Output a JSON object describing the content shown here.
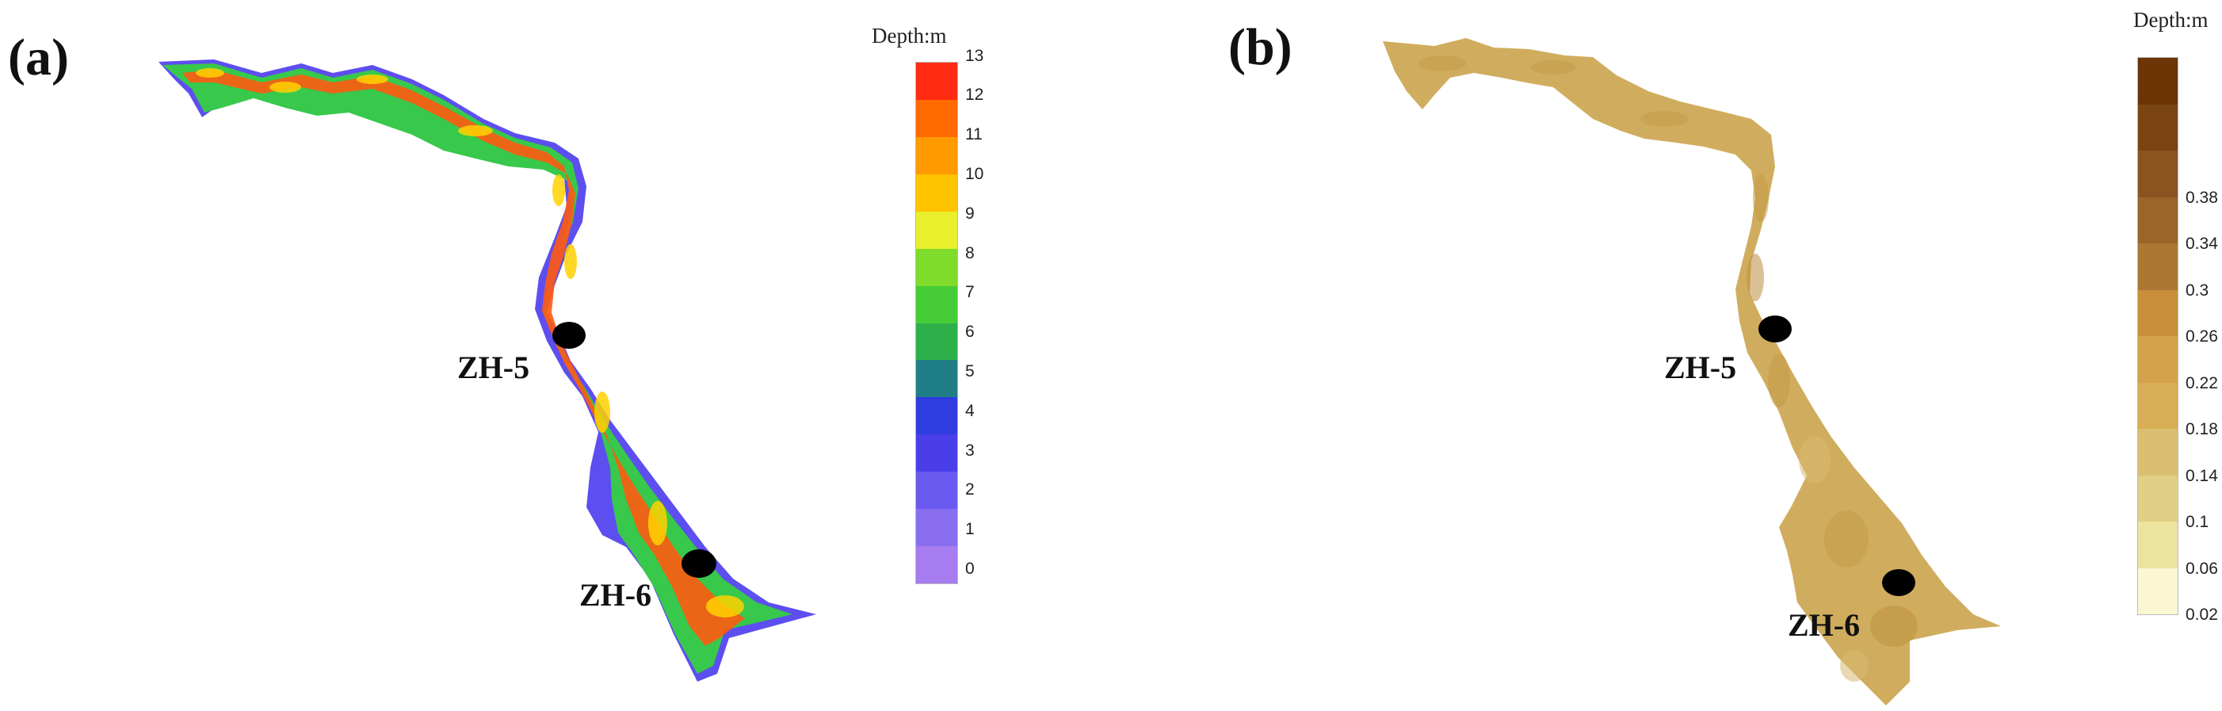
{
  "panels": [
    {
      "id": "a",
      "label": "(a)",
      "legend": {
        "title": "Depth:m",
        "ticks": [
          "0",
          "1",
          "2",
          "3",
          "4",
          "5",
          "6",
          "7",
          "8",
          "9",
          "10",
          "11",
          "12",
          "13"
        ],
        "colors": [
          "#a77cf0",
          "#8a6ef0",
          "#6a5af0",
          "#4a3ee8",
          "#2f3ce0",
          "#207f86",
          "#2db04a",
          "#46cc36",
          "#7fdc2a",
          "#e9ef2a",
          "#ffc400",
          "#ff9a00",
          "#ff6a00",
          "#ff2a12"
        ]
      },
      "stations": [
        {
          "name": "ZH-5"
        },
        {
          "name": "ZH-6"
        }
      ]
    },
    {
      "id": "b",
      "label": "(b)",
      "legend": {
        "title": "Depth:m",
        "ticks": [
          "0.02",
          "0.06",
          "0.1",
          "0.14",
          "0.18",
          "0.22",
          "0.26",
          "0.3",
          "0.34",
          "0.38"
        ],
        "colors": [
          "#fbf6d4",
          "#ece39e",
          "#e0cf85",
          "#dbbe72",
          "#d8ae56",
          "#d3a24a",
          "#c98e3a",
          "#ac7733",
          "#9b6428",
          "#8a5420",
          "#7a4512",
          "#6b3506"
        ]
      },
      "stations": [
        {
          "name": "ZH-5"
        },
        {
          "name": "ZH-6"
        }
      ]
    }
  ],
  "colors": {
    "station_marker": "#000000",
    "river_b_fill": "#d0ad5e",
    "river_b_dark": "#c49a48",
    "river_a_outer": "#6a55ee",
    "river_a_mid": "#36c84a",
    "river_a_core": "#ff5a12"
  }
}
